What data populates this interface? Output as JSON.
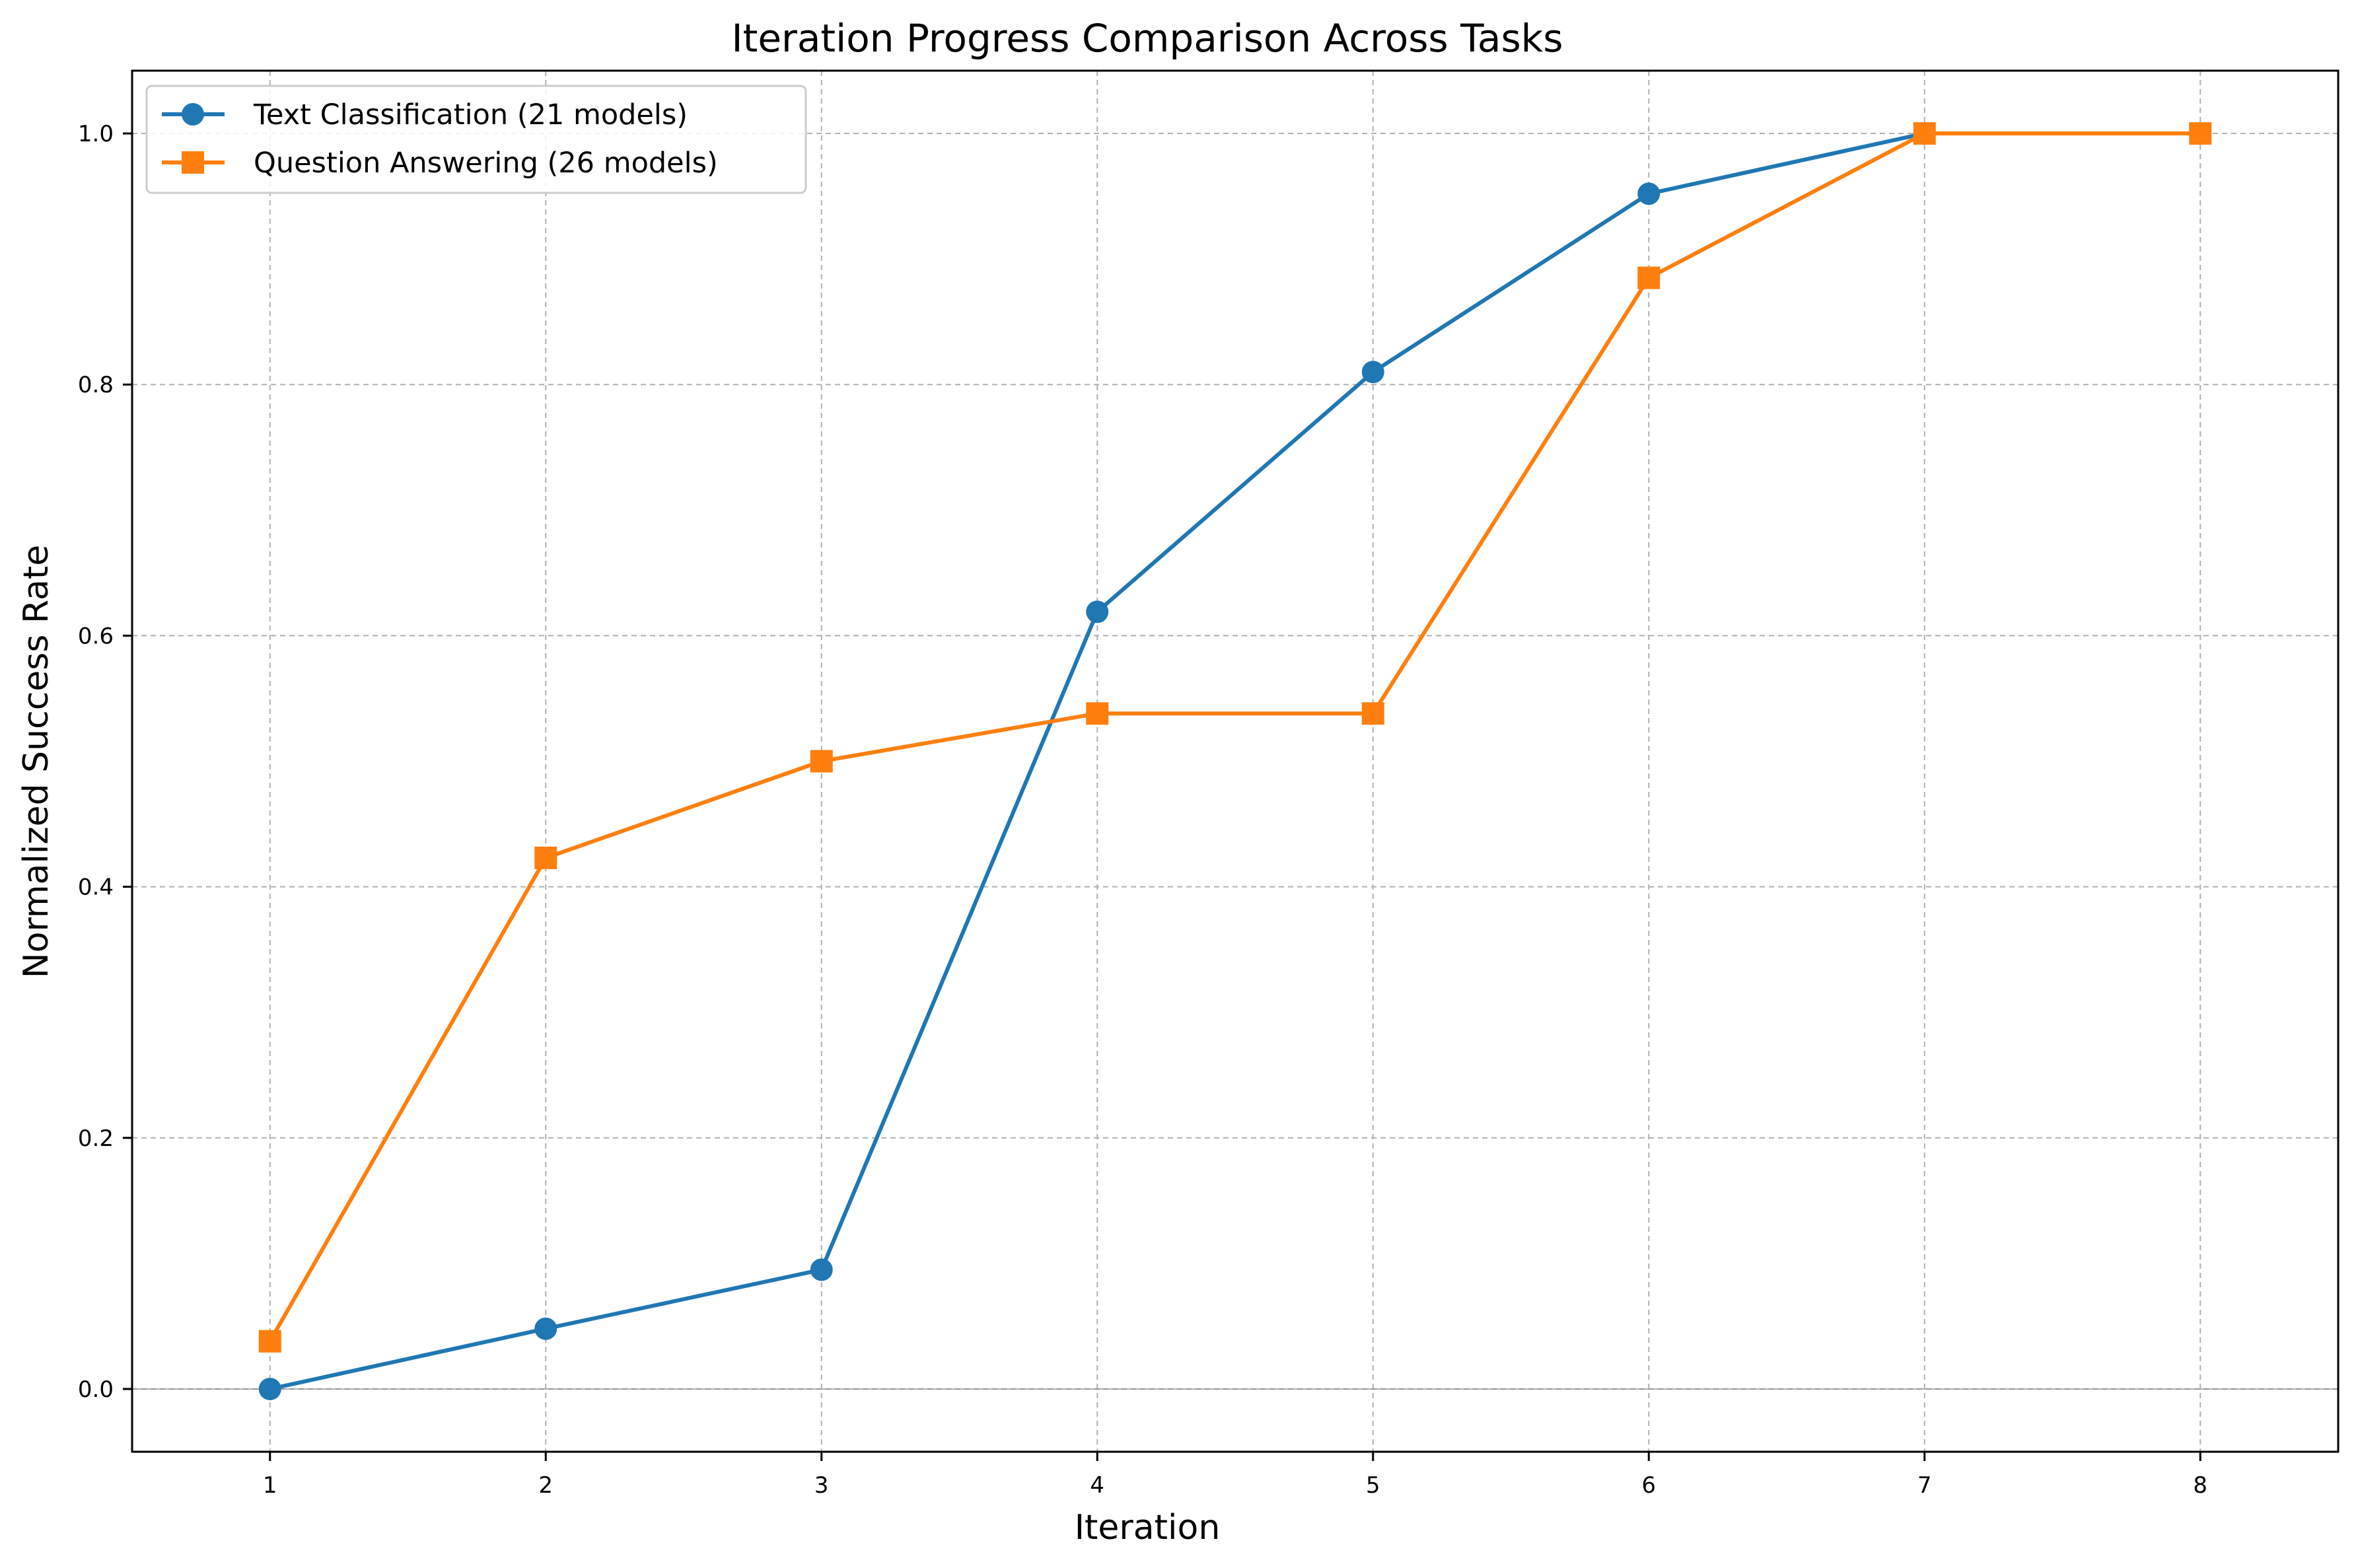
{
  "chart_data": {
    "type": "line",
    "title": "Iteration Progress Comparison Across Tasks",
    "xlabel": "Iteration",
    "ylabel": "Normalized Success Rate",
    "x": [
      1,
      2,
      3,
      4,
      5,
      6,
      7,
      8
    ],
    "xlim": [
      0.5,
      8.5
    ],
    "ylim": [
      -0.05,
      1.05
    ],
    "xticks": [
      "1",
      "2",
      "3",
      "4",
      "5",
      "6",
      "7",
      "8"
    ],
    "yticks": [
      "0.0",
      "0.2",
      "0.4",
      "0.6",
      "0.8",
      "1.0"
    ],
    "grid": true,
    "legend_position": "top-left",
    "series": [
      {
        "name": "Text Classification (21 models)",
        "color": "#1f77b4",
        "marker": "circle",
        "x": [
          1,
          2,
          3,
          4,
          5,
          6,
          7
        ],
        "values": [
          0.0,
          0.048,
          0.095,
          0.619,
          0.81,
          0.952,
          1.0
        ]
      },
      {
        "name": "Question Answering (26 models)",
        "color": "#ff7f0e",
        "marker": "square",
        "x": [
          1,
          2,
          3,
          4,
          5,
          6,
          7,
          8
        ],
        "values": [
          0.038,
          0.423,
          0.5,
          0.538,
          0.538,
          0.885,
          1.0,
          1.0
        ]
      }
    ]
  }
}
